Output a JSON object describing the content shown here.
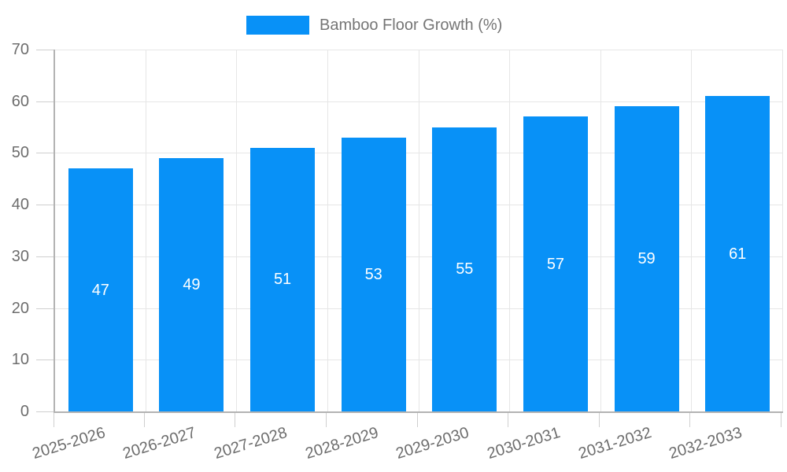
{
  "chart_data": {
    "type": "bar",
    "title": "Bamboo Floor Growth (%)",
    "categories": [
      "2025-2026",
      "2026-2027",
      "2027-2028",
      "2028-2029",
      "2029-2030",
      "2030-2031",
      "2031-2032",
      "2032-2033"
    ],
    "values": [
      47,
      49,
      51,
      53,
      55,
      57,
      59,
      61
    ],
    "series": [
      {
        "name": "Bamboo Floor Growth (%)",
        "values": [
          47,
          49,
          51,
          53,
          55,
          57,
          59,
          61
        ]
      }
    ],
    "xlabel": "",
    "ylabel": "",
    "ylim": [
      0,
      70
    ],
    "ytick_step": 10,
    "yticks": [
      "0",
      "10",
      "20",
      "30",
      "40",
      "50",
      "60",
      "70"
    ],
    "grid": true,
    "legend_position": "top-center",
    "value_labels": "centered-inside-bars",
    "colors": {
      "bar": "#0891F7",
      "value_label": "#ffffff",
      "axis_text": "#6d6d6d",
      "legend_text": "#757575",
      "grid_line": "#e6e6e6",
      "axis_line": "#b3b3b3",
      "tick_mark": "#cfcfcf",
      "background": "#ffffff"
    },
    "x_label_rotation_deg": -17
  }
}
